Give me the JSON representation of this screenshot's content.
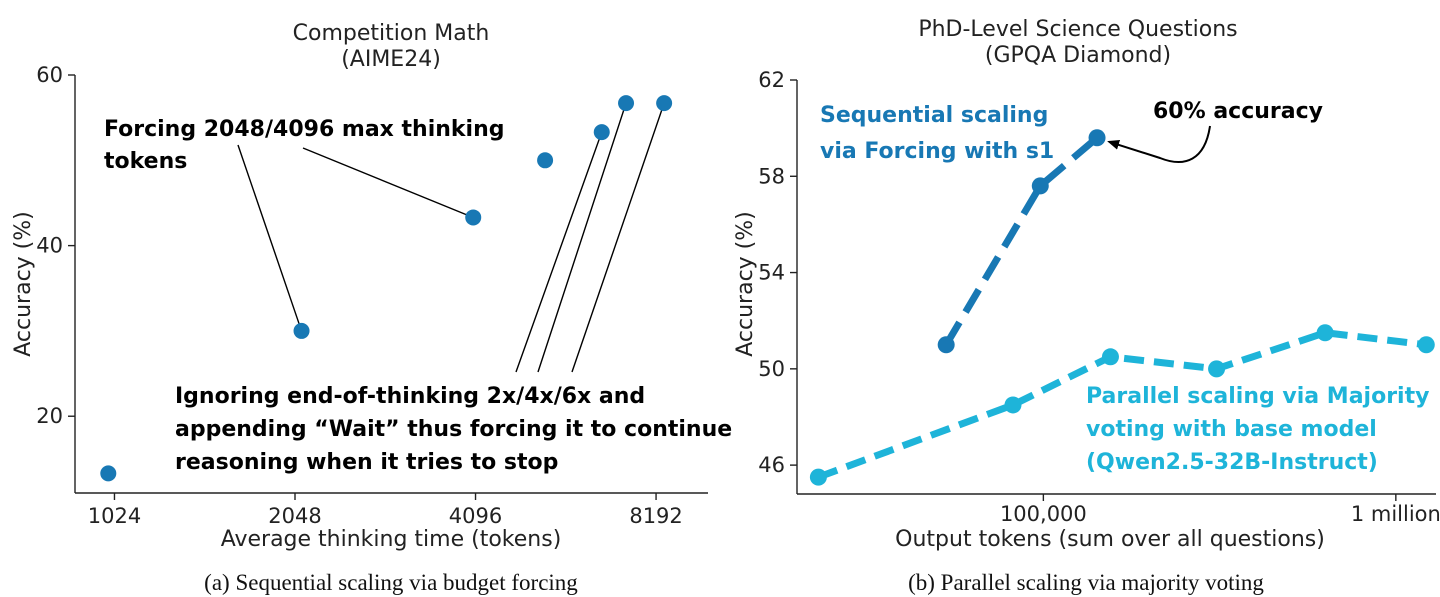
{
  "captions": {
    "a": "(a) Sequential scaling via budget forcing",
    "b": "(b) Parallel scaling via majority voting"
  },
  "colors": {
    "seq": "#1878b4",
    "par": "#1eb4d9",
    "text": "#222222"
  },
  "chart_data": [
    {
      "type": "scatter",
      "title": "Competition Math",
      "subtitle": "(AIME24)",
      "xlabel": "Average thinking time (tokens)",
      "ylabel": "Accuracy (%)",
      "x_scale": "log2",
      "xlim": [
        880,
        10000
      ],
      "ylim": [
        11,
        60
      ],
      "xticks": [
        1024,
        2048,
        4096,
        8192
      ],
      "xtick_labels": [
        "1024",
        "2048",
        "4096",
        "8192"
      ],
      "yticks": [
        20,
        40,
        60
      ],
      "ytick_labels": [
        "20",
        "40",
        "60"
      ],
      "grid": false,
      "points": [
        {
          "x": 1000,
          "y": 13.3
        },
        {
          "x": 2100,
          "y": 30.0
        },
        {
          "x": 4060,
          "y": 43.3
        },
        {
          "x": 5350,
          "y": 50.0
        },
        {
          "x": 6650,
          "y": 53.3
        },
        {
          "x": 7300,
          "y": 56.7
        },
        {
          "x": 8450,
          "y": 56.7
        }
      ],
      "annotations": [
        {
          "lines": [
            "Forcing 2048/4096 max thinking",
            "tokens"
          ],
          "targets": [
            1,
            2
          ]
        },
        {
          "lines": [
            "Ignoring end-of-thinking 2x/4x/6x and",
            "appending “Wait” thus forcing it to continue",
            "reasoning when it tries to stop"
          ],
          "targets": [
            4,
            5,
            6
          ]
        }
      ]
    },
    {
      "type": "line",
      "title": "PhD-Level Science Questions",
      "subtitle": "(GPQA Diamond)",
      "xlabel": "Output tokens (sum over all questions)",
      "ylabel": "Accuracy (%)",
      "x_scale": "log10",
      "xlim": [
        20000,
        1300000
      ],
      "ylim": [
        44.8,
        62
      ],
      "xticks": [
        100000,
        1000000
      ],
      "xtick_labels": [
        "100,000",
        "1 million"
      ],
      "yticks": [
        46,
        50,
        54,
        58,
        62
      ],
      "ytick_labels": [
        "46",
        "50",
        "54",
        "58",
        "62"
      ],
      "grid": false,
      "series": [
        {
          "name": "Sequential scaling via Forcing with s1",
          "label_lines": [
            "Sequential scaling",
            "via Forcing with s1"
          ],
          "x": [
            53000,
            98000,
            142000
          ],
          "y": [
            51.0,
            57.6,
            59.6
          ]
        },
        {
          "name": "Parallel scaling via Majority voting with base model (Qwen2.5-32B-Instruct)",
          "label_lines": [
            "Parallel scaling via Majority",
            "voting with base model",
            "(Qwen2.5-32B-Instruct)"
          ],
          "x": [
            23000,
            82000,
            155000,
            310000,
            630000,
            1220000
          ],
          "y": [
            45.5,
            48.5,
            50.5,
            50.0,
            51.5,
            51.0
          ]
        }
      ],
      "annotations": [
        {
          "text": "60% accuracy",
          "target_series": 0,
          "target_index": 2
        }
      ]
    }
  ]
}
